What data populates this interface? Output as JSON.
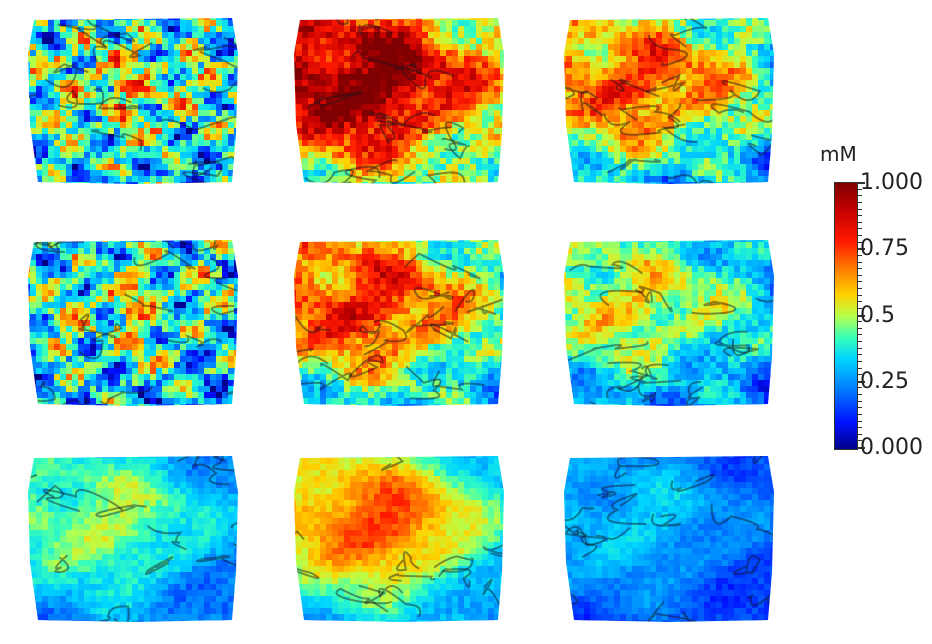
{
  "colorbar": {
    "unit": "mM",
    "labels": [
      "1.000",
      "0.75",
      "0.5",
      "0.25",
      "0.000"
    ]
  }
}
